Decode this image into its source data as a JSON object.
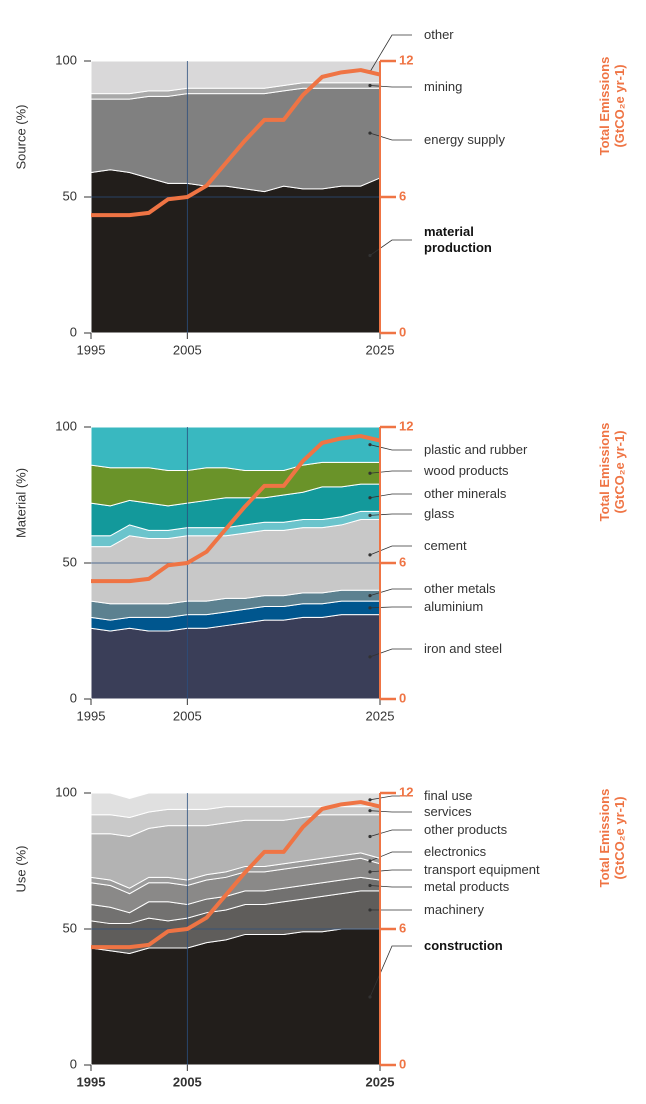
{
  "chart_data": [
    {
      "type": "stacked-area",
      "ylabel": "Source (%)",
      "y2label": "Total Emissions (GtCO₂e yr-1)",
      "x": [
        1995,
        1997,
        1999,
        2001,
        2003,
        2005,
        2007,
        2009,
        2011,
        2013,
        2015,
        2017,
        2019,
        2021,
        2023,
        2025
      ],
      "xlim": [
        1995,
        2025
      ],
      "xticks": [
        1995,
        2005,
        2025
      ],
      "ylim": [
        0,
        100
      ],
      "yticks": [
        0,
        50,
        100
      ],
      "y2lim": [
        0,
        12
      ],
      "y2ticks": [
        0,
        6,
        12
      ],
      "series": [
        {
          "name": "material production",
          "color": "#221e1b",
          "values": [
            59,
            60,
            59,
            57,
            55,
            55,
            54,
            54,
            53,
            52,
            54,
            53,
            53,
            54,
            54,
            57
          ]
        },
        {
          "name": "energy supply",
          "color": "#808080",
          "values": [
            27,
            26,
            27,
            30,
            32,
            33,
            34,
            34,
            35,
            36,
            35,
            37,
            37,
            36,
            36,
            33
          ]
        },
        {
          "name": "mining",
          "color": "#a9a9a9",
          "values": [
            2,
            2,
            2,
            2,
            2,
            2,
            2,
            2,
            2,
            2,
            2,
            2,
            2,
            2,
            2,
            2
          ]
        },
        {
          "name": "other",
          "color": "#d9d8d9",
          "values": [
            12,
            12,
            12,
            11,
            11,
            10,
            10,
            10,
            10,
            10,
            9,
            8,
            8,
            8,
            8,
            8
          ]
        },
        {
          "axis": "y2",
          "color": "#ef7444",
          "values": [
            5.2,
            5.2,
            5.2,
            5.3,
            5.9,
            6.0,
            6.5,
            7.5,
            8.5,
            9.4,
            9.4,
            10.5,
            11.3,
            11.5,
            11.6,
            11.4
          ]
        }
      ]
    },
    {
      "type": "stacked-area",
      "ylabel": "Material (%)",
      "y2label": "Total Emissions (GtCO₂e yr-1)",
      "x": [
        1995,
        1997,
        1999,
        2001,
        2003,
        2005,
        2007,
        2009,
        2011,
        2013,
        2015,
        2017,
        2019,
        2021,
        2023,
        2025
      ],
      "xlim": [
        1995,
        2025
      ],
      "xticks": [
        1995,
        2005,
        2025
      ],
      "ylim": [
        0,
        100
      ],
      "yticks": [
        0,
        50,
        100
      ],
      "y2lim": [
        0,
        12
      ],
      "y2ticks": [
        0,
        6,
        12
      ],
      "series": [
        {
          "name": "iron and steel",
          "color": "#3a3e58",
          "values": [
            26,
            25,
            26,
            25,
            25,
            26,
            26,
            27,
            28,
            29,
            29,
            30,
            30,
            31,
            31,
            31
          ]
        },
        {
          "name": "aluminium",
          "color": "#00568e",
          "values": [
            4,
            4,
            4,
            5,
            5,
            5,
            5,
            5,
            5,
            5,
            5,
            5,
            5,
            5,
            5,
            5
          ]
        },
        {
          "name": "other metals",
          "color": "#5c8190",
          "values": [
            6,
            6,
            5,
            5,
            5,
            5,
            5,
            5,
            4,
            4,
            4,
            4,
            4,
            4,
            4,
            4
          ]
        },
        {
          "name": "cement",
          "color": "#c8c8c8",
          "values": [
            20,
            21,
            25,
            24,
            24,
            24,
            24,
            23,
            24,
            24,
            24,
            24,
            24,
            24,
            26,
            26
          ]
        },
        {
          "name": "glass",
          "color": "#6bc4cc",
          "values": [
            4,
            4,
            4,
            3,
            3,
            3,
            3,
            3,
            3,
            3,
            3,
            3,
            3,
            3,
            3,
            3
          ]
        },
        {
          "name": "other minerals",
          "color": "#13999b",
          "values": [
            12,
            11,
            9,
            10,
            9,
            9,
            10,
            11,
            10,
            9,
            10,
            10,
            12,
            11,
            10,
            10
          ]
        },
        {
          "name": "wood products",
          "color": "#6a9329",
          "values": [
            14,
            14,
            12,
            13,
            13,
            12,
            12,
            11,
            10,
            10,
            9,
            10,
            9,
            9,
            8,
            8
          ]
        },
        {
          "name": "plastic and rubber",
          "color": "#39b8c0",
          "values": [
            14,
            15,
            15,
            15,
            16,
            16,
            15,
            15,
            16,
            16,
            16,
            14,
            13,
            13,
            13,
            13
          ]
        },
        {
          "axis": "y2",
          "color": "#ef7444",
          "values": [
            5.2,
            5.2,
            5.2,
            5.3,
            5.9,
            6.0,
            6.5,
            7.5,
            8.5,
            9.4,
            9.4,
            10.5,
            11.3,
            11.5,
            11.6,
            11.4
          ]
        }
      ]
    },
    {
      "type": "stacked-area",
      "ylabel": "Use (%)",
      "y2label": "Total Emissions (GtCO₂e yr-1)",
      "x": [
        1995,
        1997,
        1999,
        2001,
        2003,
        2005,
        2007,
        2009,
        2011,
        2013,
        2015,
        2017,
        2019,
        2021,
        2023,
        2025
      ],
      "xlim": [
        1995,
        2025
      ],
      "xticks": [
        1995,
        2005,
        2025
      ],
      "ylim": [
        0,
        100
      ],
      "yticks": [
        0,
        50,
        100
      ],
      "y2lim": [
        0,
        12
      ],
      "y2ticks": [
        0,
        6,
        12
      ],
      "series": [
        {
          "name": "construction",
          "color": "#221e1b",
          "values": [
            43,
            42,
            41,
            43,
            43,
            43,
            45,
            46,
            48,
            48,
            48,
            49,
            49,
            50,
            50,
            50
          ]
        },
        {
          "name": "machinery",
          "color": "#5f5d5b",
          "values": [
            10,
            10,
            11,
            11,
            10,
            11,
            11,
            11,
            11,
            11,
            12,
            12,
            13,
            13,
            14,
            14
          ]
        },
        {
          "name": "metal products",
          "color": "#727170",
          "values": [
            6,
            6,
            4,
            6,
            7,
            5,
            5,
            5,
            5,
            5,
            5,
            5,
            5,
            5,
            5,
            4
          ]
        },
        {
          "name": "transport equipment",
          "color": "#8a8988",
          "values": [
            8,
            8,
            7,
            7,
            7,
            7,
            7,
            7,
            7,
            7,
            7,
            7,
            7,
            7,
            7,
            6
          ]
        },
        {
          "name": "electronics",
          "color": "#9c9c9c",
          "values": [
            2,
            2,
            2,
            2,
            2,
            2,
            2,
            2,
            2,
            2,
            2,
            2,
            2,
            2,
            2,
            2
          ]
        },
        {
          "name": "other products",
          "color": "#b3b3b3",
          "values": [
            16,
            17,
            19,
            18,
            19,
            20,
            18,
            18,
            17,
            17,
            16,
            16,
            16,
            15,
            14,
            16
          ]
        },
        {
          "name": "services",
          "color": "#c9c9c9",
          "values": [
            7,
            7,
            7,
            6,
            6,
            6,
            6,
            6,
            5,
            5,
            5,
            4,
            3,
            3,
            3,
            3
          ]
        },
        {
          "name": "final use",
          "color": "#e0e0e0",
          "values": [
            8,
            8,
            7,
            7,
            6,
            6,
            6,
            5,
            5,
            5,
            5,
            5,
            5,
            5,
            5,
            5
          ]
        },
        {
          "axis": "y2",
          "color": "#ef7444",
          "values": [
            5.2,
            5.2,
            5.2,
            5.3,
            5.9,
            6.0,
            6.5,
            7.5,
            8.5,
            9.4,
            9.4,
            10.5,
            11.3,
            11.5,
            11.6,
            11.4
          ]
        }
      ]
    }
  ]
}
